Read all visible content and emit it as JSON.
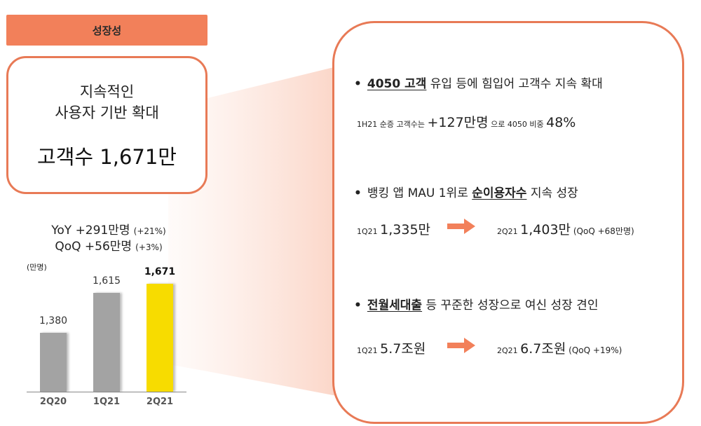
{
  "header": {
    "title": "성장성"
  },
  "summary": {
    "line1": "지속적인",
    "line2": "사용자 기반 확대",
    "value": "고객수 1,671만"
  },
  "growth": {
    "yoy": {
      "label": "YoY +291만명",
      "pct": "(+21%)"
    },
    "qoq": {
      "label": "QoQ +56만명",
      "pct": "(+3%)"
    }
  },
  "chart_data": {
    "type": "bar",
    "title": "",
    "unit_label": "(만명)",
    "categories": [
      "2Q20",
      "1Q21",
      "2Q21"
    ],
    "values": [
      1380,
      1615,
      1671
    ],
    "value_labels": [
      "1,380",
      "1,615",
      "1,671"
    ],
    "colors": [
      "#a3a3a3",
      "#a3a3a3",
      "#f7dc00"
    ],
    "highlight_index": 2,
    "xlabel": "",
    "ylabel": "만명",
    "grid": false
  },
  "details": {
    "bullet1": {
      "underlined": "4050 고객",
      "rest": " 유입 등에 힘입어 고객수 지속 확대",
      "sub_prefix": "1H21 순증 고객수는 ",
      "sub_value": "+127만명",
      "sub_mid": " 으로 4050 비중 ",
      "sub_pct": "48%"
    },
    "bullet2": {
      "prefix": "뱅킹 앱 MAU 1위로 ",
      "underlined": "순이용자수",
      "rest": " 지속 성장",
      "from_period": "1Q21 ",
      "from_value": "1,335만",
      "to_period": "2Q21 ",
      "to_value": "1,403만",
      "to_note": " (QoQ +68만명)"
    },
    "bullet3": {
      "underlined": "전월세대출",
      "rest": " 등 꾸준한 성장으로 여신 성장 견인",
      "from_period": "1Q21 ",
      "from_value": "5.7조원",
      "to_period": "2Q21 ",
      "to_value": "6.7조원",
      "to_note": " (QoQ +19%)"
    }
  },
  "colors": {
    "accent": "#f2805a",
    "border": "#e87a56",
    "bar_gray": "#a3a3a3",
    "bar_highlight": "#f7dc00",
    "funnel": "#fbd9cd"
  }
}
